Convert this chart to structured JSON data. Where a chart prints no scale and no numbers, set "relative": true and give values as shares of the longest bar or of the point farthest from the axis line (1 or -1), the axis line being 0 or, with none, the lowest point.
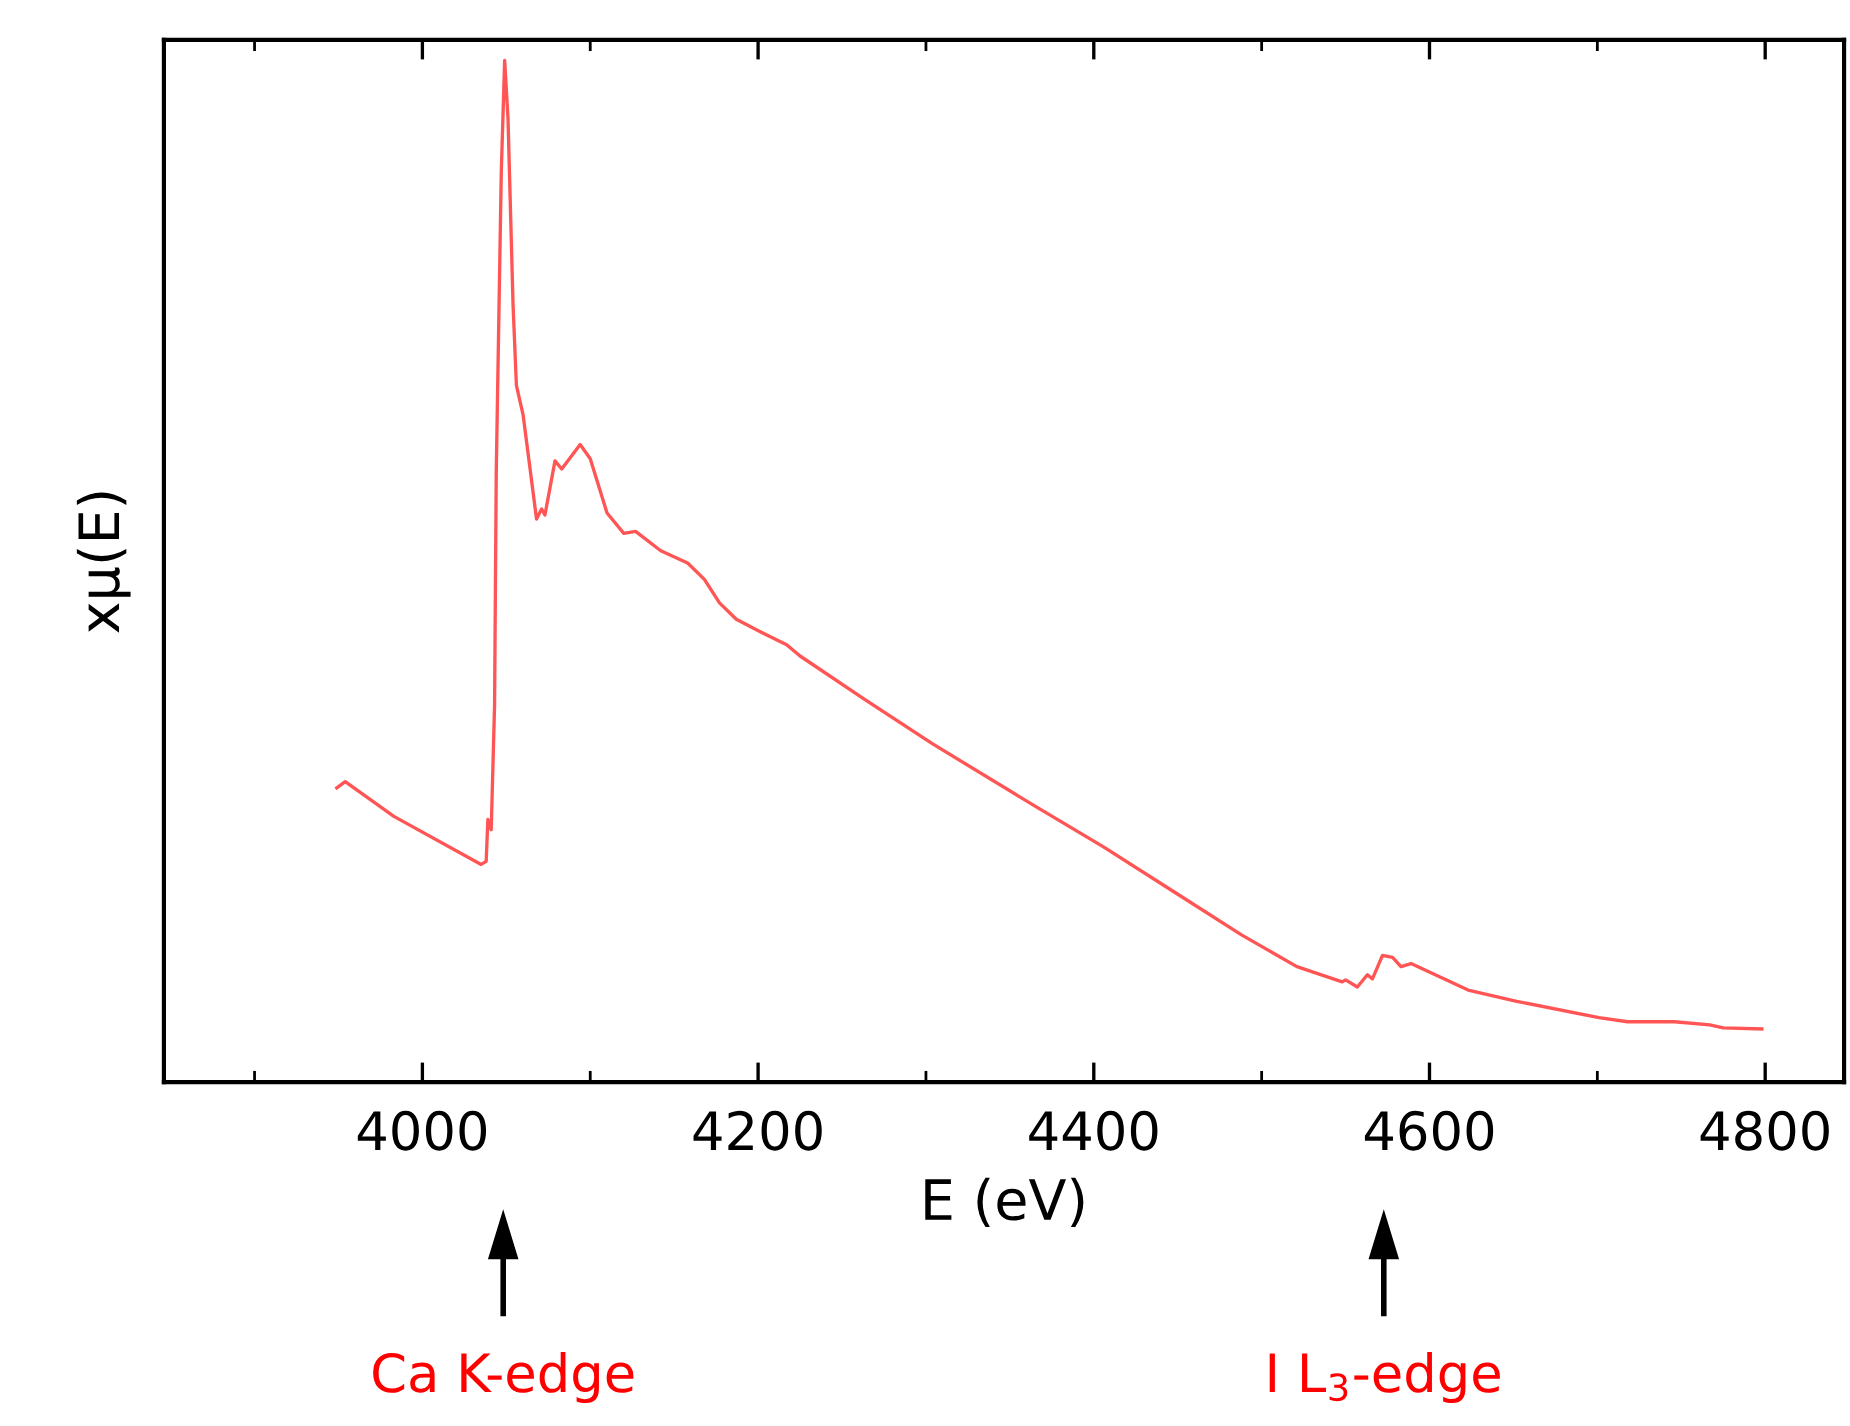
{
  "chart_data": {
    "type": "line",
    "relative": true,
    "xlabel": "E (eV)",
    "ylabel": "xμ(E)",
    "x": [
      3949,
      3954,
      3983,
      4035,
      4038,
      4039,
      4041,
      4043,
      4044,
      4047,
      4049,
      4051,
      4054,
      4056,
      4060,
      4068,
      4071,
      4073,
      4079,
      4083,
      4094,
      4100,
      4110,
      4120,
      4127,
      4142,
      4158,
      4168,
      4177,
      4187,
      4201,
      4217,
      4225,
      4263,
      4304,
      4365,
      4406,
      4447,
      4488,
      4521,
      4548,
      4550,
      4557,
      4563,
      4566,
      4572,
      4578,
      4583,
      4589,
      4623,
      4652,
      4701,
      4718,
      4746,
      4767,
      4775,
      4798
    ],
    "series": [
      {
        "color": "#ff5555",
        "values": [
          0.288,
          0.294,
          0.26,
          0.213,
          0.216,
          0.257,
          0.247,
          0.369,
          0.597,
          0.891,
          1,
          0.943,
          0.761,
          0.682,
          0.653,
          0.551,
          0.561,
          0.555,
          0.608,
          0.6,
          0.624,
          0.61,
          0.557,
          0.537,
          0.539,
          0.52,
          0.508,
          0.492,
          0.469,
          0.453,
          0.441,
          0.428,
          0.417,
          0.375,
          0.331,
          0.27,
          0.23,
          0.187,
          0.144,
          0.113,
          0.098,
          0.1,
          0.093,
          0.105,
          0.101,
          0.124,
          0.122,
          0.113,
          0.116,
          0.09,
          0.079,
          0.063,
          0.059,
          0.059,
          0.056,
          0.053,
          0.052
        ]
      }
    ],
    "xlim": [
      3846,
      4847
    ],
    "xticks": [
      {
        "value": 3900,
        "label": null
      },
      4000,
      {
        "value": 4100,
        "label": null
      },
      4200,
      {
        "value": 4300,
        "label": null
      },
      4400,
      {
        "value": 4500,
        "label": null
      },
      4600,
      {
        "value": 4700,
        "label": null
      },
      4800
    ],
    "tick_labels": "x",
    "grid": false,
    "legend": false,
    "marker": "none",
    "line_style": "solid",
    "annotations": [
      "Ca K-edge",
      "I L$_{3}$-edge"
    ]
  }
}
